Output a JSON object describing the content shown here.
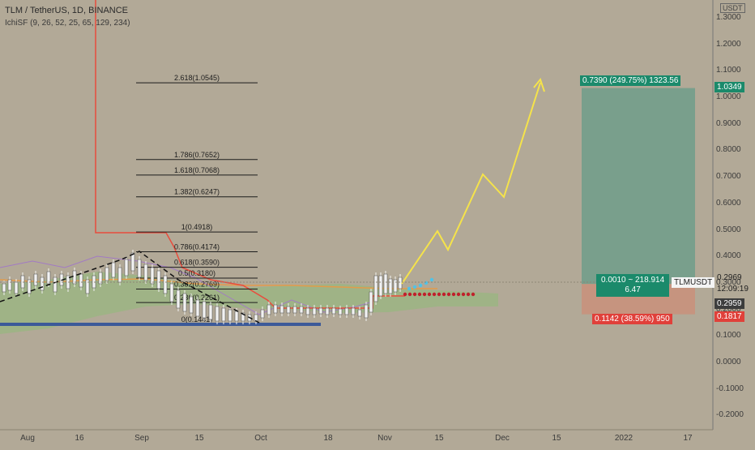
{
  "header": {
    "symbol_line": "TLM / TetherUS, 1D, BINANCE",
    "indicator": "IchiSF (9, 26, 52, 25, 65, 129, 234)"
  },
  "currency_badge": "USDT",
  "chart_data": {
    "type": "line",
    "symbol": "TLMUSDT",
    "y_ticks": [
      "1.2000",
      "1.1000",
      "1.0000",
      "0.9000",
      "0.8000",
      "0.7000",
      "0.6000",
      "0.5000",
      "0.4000",
      "0.3000",
      "0.2000",
      "0.1000",
      "0.0000",
      "-0.1000",
      "-0.2000"
    ],
    "y_top_partial": "1.3000",
    "x_ticks": [
      "Aug",
      "16",
      "Sep",
      "15",
      "Oct",
      "18",
      "Nov",
      "15",
      "Dec",
      "15",
      "2022",
      "17"
    ],
    "fib_levels": [
      {
        "label": "2.618(1.0545)",
        "value": 1.0545
      },
      {
        "label": "1.786(0.7652)",
        "value": 0.7652
      },
      {
        "label": "1.618(0.7068)",
        "value": 0.7068
      },
      {
        "label": "1.382(0.6247)",
        "value": 0.6247
      },
      {
        "label": "1(0.4918)",
        "value": 0.4918
      },
      {
        "label": "0.786(0.4174)",
        "value": 0.4174
      },
      {
        "label": "0.618(0.3590)",
        "value": 0.359
      },
      {
        "label": "0.5(0.3180)",
        "value": 0.318
      },
      {
        "label": "0.382(0.2769)",
        "value": 0.2769
      },
      {
        "label": "0.236(0.2261)",
        "value": 0.2261
      },
      {
        "label": "0(0.1441)",
        "value": 0.1441
      }
    ],
    "projection_path": [
      {
        "x": "Nov 1",
        "y": 0.3
      },
      {
        "x": "Nov 14",
        "y": 0.48
      },
      {
        "x": "Nov 19",
        "y": 0.42
      },
      {
        "x": "Nov 30",
        "y": 0.7
      },
      {
        "x": "Dec 6",
        "y": 0.62
      },
      {
        "x": "Dec 17",
        "y": 1.06
      }
    ],
    "position": {
      "target_label": "0.7390 (249.75%) 1323.56",
      "stop_label": "0.1142 (38.59%) 950",
      "center_label_line1": "0.0010 ~ 218.914",
      "center_label_line2": "6.47",
      "target_price": "1.0349",
      "entry_price": "0.2959",
      "stop_price": "0.1817"
    },
    "last_price": "0.2969",
    "countdown": "12:09:19",
    "colors": {
      "background": "#b2a997",
      "target_zone": "#6f9e8a",
      "stop_zone": "#c9917a",
      "projection": "#f5e34a",
      "price_line_red": "#e84c3d",
      "cloud_green": "#8fbc78",
      "target_tag": "#1b8a6b",
      "stop_tag": "#e0403a"
    }
  }
}
